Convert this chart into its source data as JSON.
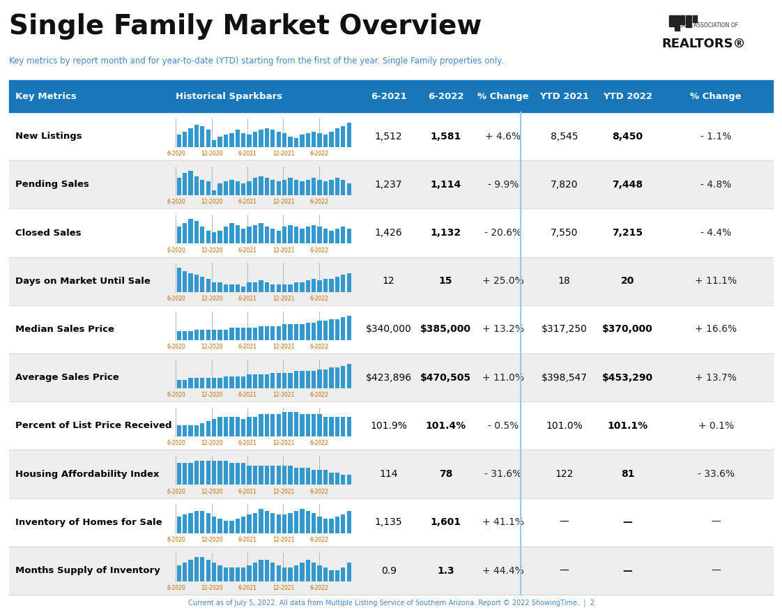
{
  "title": "Single Family Market Overview",
  "subtitle": "Key metrics by report month and for year-to-date (YTD) starting from the first of the year. Single Family properties only.",
  "footer": "Current as of July 5, 2022. All data from Multiple Listing Service of Southern Arizona. Report © 2022 ShowingTime.  |  2",
  "header_bg": "#1777b8",
  "header_text_color": "#ffffff",
  "row_colors": [
    "#ffffff",
    "#eeeeee"
  ],
  "col_separator_color": "#88ccee",
  "columns": [
    "Key Metrics",
    "Historical Sparkbars",
    "6-2021",
    "6-2022",
    "% Change",
    "YTD 2021",
    "YTD 2022",
    "% Change"
  ],
  "rows": [
    {
      "metric": "New Listings",
      "val_2021": "1,512",
      "val_2022": "1,581",
      "pct_change": "+ 4.6%",
      "ytd_2021": "8,545",
      "ytd_2022": "8,450",
      "ytd_pct": "- 1.1%",
      "spark_vals": [
        7,
        9,
        11,
        13,
        12,
        10,
        4,
        6,
        7,
        8,
        10,
        8,
        7,
        9,
        10,
        11,
        10,
        9,
        8,
        6,
        5,
        7,
        8,
        9,
        8,
        7,
        9,
        11,
        12,
        14
      ]
    },
    {
      "metric": "Pending Sales",
      "val_2021": "1,237",
      "val_2022": "1,114",
      "pct_change": "- 9.9%",
      "ytd_2021": "7,820",
      "ytd_2022": "7,448",
      "ytd_pct": "- 4.8%",
      "spark_vals": [
        10,
        13,
        14,
        11,
        9,
        8,
        3,
        7,
        8,
        9,
        8,
        7,
        8,
        10,
        11,
        10,
        9,
        8,
        9,
        10,
        9,
        8,
        9,
        10,
        9,
        8,
        9,
        10,
        9,
        7
      ]
    },
    {
      "metric": "Closed Sales",
      "val_2021": "1,426",
      "val_2022": "1,132",
      "pct_change": "- 20.6%",
      "ytd_2021": "7,550",
      "ytd_2022": "7,215",
      "ytd_pct": "- 4.4%",
      "spark_vals": [
        9,
        11,
        13,
        12,
        9,
        7,
        6,
        7,
        9,
        11,
        10,
        8,
        9,
        10,
        11,
        9,
        8,
        7,
        9,
        10,
        9,
        8,
        9,
        10,
        9,
        8,
        7,
        8,
        9,
        8
      ]
    },
    {
      "metric": "Days on Market Until Sale",
      "val_2021": "12",
      "val_2022": "15",
      "pct_change": "+ 25.0%",
      "ytd_2021": "18",
      "ytd_2022": "20",
      "ytd_pct": "+ 11.1%",
      "spark_vals": [
        13,
        11,
        10,
        9,
        8,
        7,
        5,
        5,
        4,
        4,
        4,
        3,
        5,
        5,
        6,
        5,
        4,
        4,
        4,
        4,
        5,
        5,
        6,
        7,
        6,
        7,
        7,
        8,
        9,
        10
      ]
    },
    {
      "metric": "Median Sales Price",
      "val_2021": "$340,000",
      "val_2022": "$385,000",
      "pct_change": "+ 13.2%",
      "ytd_2021": "$317,250",
      "ytd_2022": "$370,000",
      "ytd_pct": "+ 16.6%",
      "spark_vals": [
        5,
        5,
        5,
        6,
        6,
        6,
        6,
        6,
        6,
        7,
        7,
        7,
        7,
        7,
        8,
        8,
        8,
        8,
        9,
        9,
        9,
        9,
        10,
        10,
        11,
        11,
        12,
        12,
        13,
        14
      ]
    },
    {
      "metric": "Average Sales Price",
      "val_2021": "$423,896",
      "val_2022": "$470,505",
      "pct_change": "+ 11.0%",
      "ytd_2021": "$398,547",
      "ytd_2022": "$453,290",
      "ytd_pct": "+ 13.7%",
      "spark_vals": [
        5,
        5,
        6,
        6,
        6,
        6,
        6,
        6,
        7,
        7,
        7,
        7,
        8,
        8,
        8,
        8,
        9,
        9,
        9,
        9,
        10,
        10,
        10,
        10,
        11,
        11,
        12,
        12,
        13,
        14
      ]
    },
    {
      "metric": "Percent of List Price Received",
      "val_2021": "101.9%",
      "val_2022": "101.4%",
      "pct_change": "- 0.5%",
      "ytd_2021": "101.0%",
      "ytd_2022": "101.1%",
      "ytd_pct": "+ 0.1%",
      "spark_vals": [
        5,
        5,
        5,
        5,
        6,
        7,
        8,
        9,
        9,
        9,
        9,
        8,
        9,
        9,
        10,
        10,
        10,
        10,
        11,
        11,
        11,
        10,
        10,
        10,
        10,
        9,
        9,
        9,
        9,
        9
      ]
    },
    {
      "metric": "Housing Affordability Index",
      "val_2021": "114",
      "val_2022": "78",
      "pct_change": "- 31.6%",
      "ytd_2021": "122",
      "ytd_2022": "81",
      "ytd_pct": "- 33.6%",
      "spark_vals": [
        9,
        9,
        9,
        10,
        10,
        10,
        10,
        10,
        10,
        9,
        9,
        9,
        8,
        8,
        8,
        8,
        8,
        8,
        8,
        8,
        7,
        7,
        7,
        6,
        6,
        6,
        5,
        5,
        4,
        4
      ]
    },
    {
      "metric": "Inventory of Homes for Sale",
      "val_2021": "1,135",
      "val_2022": "1,601",
      "pct_change": "+ 41.1%",
      "ytd_2021": "—",
      "ytd_2022": "—",
      "ytd_pct": "—",
      "spark_vals": [
        8,
        9,
        10,
        11,
        11,
        10,
        8,
        7,
        6,
        6,
        7,
        8,
        9,
        10,
        12,
        11,
        10,
        9,
        9,
        10,
        11,
        12,
        11,
        10,
        8,
        7,
        7,
        8,
        9,
        11
      ]
    },
    {
      "metric": "Months Supply of Inventory",
      "val_2021": "0.9",
      "val_2022": "1.3",
      "pct_change": "+ 44.4%",
      "ytd_2021": "—",
      "ytd_2022": "—",
      "ytd_pct": "—",
      "spark_vals": [
        6,
        7,
        8,
        9,
        9,
        8,
        7,
        6,
        5,
        5,
        5,
        5,
        6,
        7,
        8,
        8,
        7,
        6,
        5,
        5,
        6,
        7,
        8,
        7,
        6,
        5,
        4,
        4,
        5,
        7
      ]
    }
  ],
  "spark_color": "#3399cc",
  "spark_divider_color": "#aaaaaa",
  "spark_tick_color": "#cc6600",
  "spark_tick_labels": [
    "6-2020",
    "12-2020",
    "6-2021",
    "12-2021",
    "6-2022"
  ],
  "pct_color": "#222222",
  "value_color": "#000000",
  "metric_color": "#000000",
  "fig_width": 11.22,
  "fig_height": 8.75,
  "dpi": 100
}
